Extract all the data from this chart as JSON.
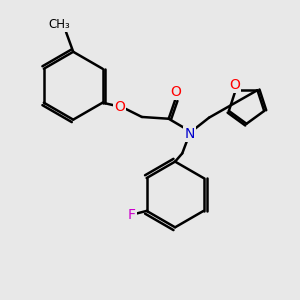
{
  "bg_color": "#e8e8e8",
  "bond_color": "#000000",
  "bond_width": 1.8,
  "atom_colors": {
    "O": "#ff0000",
    "N": "#0000cc",
    "F": "#cc00cc",
    "C": "#000000"
  }
}
